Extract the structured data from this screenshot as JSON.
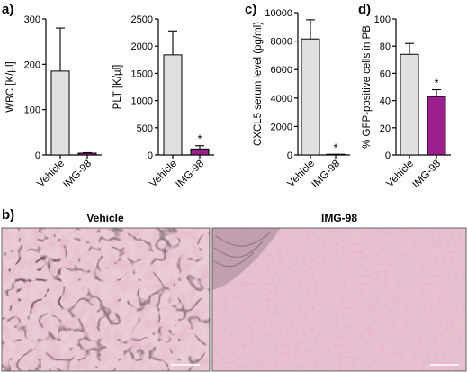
{
  "panel_letters": {
    "a": "a)",
    "b": "b)",
    "c": "c)",
    "d": "d)"
  },
  "chart_data": [
    {
      "type": "bar",
      "panel": "a",
      "categories": [
        "Vehicle",
        "IMG-98"
      ],
      "values": [
        185,
        4
      ],
      "errors": [
        95,
        1
      ],
      "ylabel": "WBC [K/µl]",
      "ylim": [
        0,
        300
      ],
      "yticks": [
        0,
        100,
        200,
        300
      ],
      "bar_colors": [
        "#e0e0e0",
        "#9b1f8d"
      ],
      "annotations": [
        "",
        ""
      ]
    },
    {
      "type": "bar",
      "panel": "a",
      "categories": [
        "Vehicle",
        "IMG-98"
      ],
      "values": [
        1840,
        110
      ],
      "errors": [
        440,
        60
      ],
      "ylabel": "PLT [K/µl]",
      "ylim": [
        0,
        2500
      ],
      "yticks": [
        0,
        500,
        1000,
        1500,
        2000,
        2500
      ],
      "bar_colors": [
        "#e0e0e0",
        "#9b1f8d"
      ],
      "annotations": [
        "",
        "*"
      ]
    },
    {
      "type": "bar",
      "panel": "c",
      "categories": [
        "Vehicle",
        "IMG-98"
      ],
      "values": [
        8150,
        20
      ],
      "errors": [
        1350,
        0
      ],
      "ylabel": "CXCL5 serum level (pg/ml)",
      "ylim": [
        0,
        10000
      ],
      "yticks": [
        0,
        2000,
        4000,
        6000,
        8000,
        10000
      ],
      "bar_colors": [
        "#e0e0e0",
        "#9b1f8d"
      ],
      "annotations": [
        "",
        "*"
      ]
    },
    {
      "type": "bar",
      "panel": "d",
      "categories": [
        "Vehicle",
        "IMG-98"
      ],
      "values": [
        74,
        43
      ],
      "errors": [
        8,
        5
      ],
      "ylabel": "% GFP-positive cells in PB",
      "ylim": [
        0,
        100
      ],
      "yticks": [
        0,
        20,
        40,
        60,
        80,
        100
      ],
      "bar_colors": [
        "#e0e0e0",
        "#9b1f8d"
      ],
      "annotations": [
        "",
        "*"
      ]
    }
  ],
  "micrographs": [
    {
      "title": "Vehicle",
      "colors": {
        "background": "#e9cdd6",
        "stain": "#c95f8e",
        "fiber": "#2a1a22"
      }
    },
    {
      "title": "IMG-98",
      "colors": {
        "background": "#e6c2d0",
        "stain": "#d36a9a",
        "fiber": "#3a2a30"
      }
    }
  ]
}
